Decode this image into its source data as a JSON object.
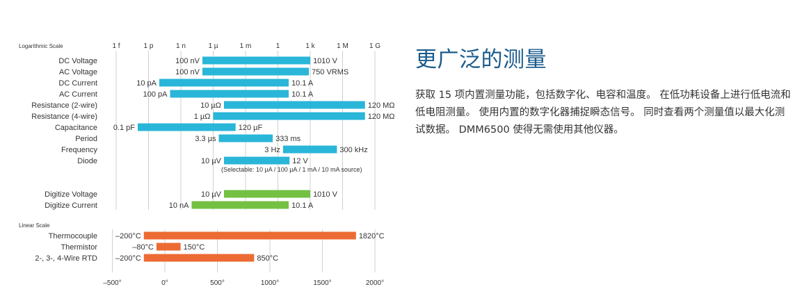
{
  "heading": "更广泛的测量",
  "description": "获取 15 项内置测量功能，包括数字化、电容和温度。 在低功耗设备上进行低电流和低电阻测量。 使用内置的数字化器捕捉瞬态信号。 同时查看两个测量值以最大化测试数据。 DMM6500 使得无需使用其他仪器。",
  "chart_data": {
    "type": "bar",
    "subtype": "floating-range",
    "colors": {
      "blue": "#29b6d8",
      "green": "#73c043",
      "orange": "#ec6b34",
      "grid": "#d0d0d0",
      "text": "#333333"
    },
    "log_scale": {
      "label": "Logarithmic Scale",
      "ticks": [
        {
          "label": "1 f",
          "exp": -15
        },
        {
          "label": "1 p",
          "exp": -12
        },
        {
          "label": "1 n",
          "exp": -9
        },
        {
          "label": "1 µ",
          "exp": -6
        },
        {
          "label": "1 m",
          "exp": -3
        },
        {
          "label": "1",
          "exp": 0
        },
        {
          "label": "1 k",
          "exp": 3
        },
        {
          "label": "1 M",
          "exp": 6
        },
        {
          "label": "1 G",
          "exp": 9
        }
      ],
      "series": [
        {
          "name": "DC Voltage",
          "low": 1e-07,
          "high": 1010,
          "low_label": "100 nV",
          "high_label": "1010 V",
          "color": "blue"
        },
        {
          "name": "AC Voltage",
          "low": 1e-07,
          "high": 750,
          "low_label": "100 nV",
          "high_label": "750 VRMS",
          "color": "blue"
        },
        {
          "name": "DC Current",
          "low": 1e-11,
          "high": 10.1,
          "low_label": "10 pA",
          "high_label": "10.1 A",
          "color": "blue"
        },
        {
          "name": "AC Current",
          "low": 1e-10,
          "high": 10.1,
          "low_label": "100 pA",
          "high_label": "10.1 A",
          "color": "blue"
        },
        {
          "name": "Resistance (2-wire)",
          "low": 1e-05,
          "high": 120000000.0,
          "low_label": "10 µΩ",
          "high_label": "120 MΩ",
          "color": "blue"
        },
        {
          "name": "Resistance (4-wire)",
          "low": 1e-06,
          "high": 120000000.0,
          "low_label": "1 µΩ",
          "high_label": "120 MΩ",
          "color": "blue"
        },
        {
          "name": "Capacitance",
          "low": 1e-13,
          "high": 0.00012,
          "low_label": "0.1 pF",
          "high_label": "120 µF",
          "color": "blue"
        },
        {
          "name": "Period",
          "low": 3.3e-06,
          "high": 0.333,
          "low_label": "3.3 µs",
          "high_label": "333 ms",
          "color": "blue"
        },
        {
          "name": "Frequency",
          "low": 3,
          "high": 300000,
          "low_label": "3 Hz",
          "high_label": "300 kHz",
          "color": "blue"
        },
        {
          "name": "Diode",
          "low": 1e-05,
          "high": 12,
          "low_label": "10 µV",
          "high_label": "12 V",
          "color": "blue"
        },
        {
          "name": "Digitize Voltage",
          "low": 1e-05,
          "high": 1010,
          "low_label": "10 µV",
          "high_label": "1010 V",
          "color": "green"
        },
        {
          "name": "Digitize Current",
          "low": 1e-08,
          "high": 10.1,
          "low_label": "10 nA",
          "high_label": "10.1 A",
          "color": "green"
        }
      ],
      "annotation": "(Selectable: 10 µA / 100 µA / 1 mA / 10 mA source)"
    },
    "linear_scale": {
      "label": "Linear Scale",
      "ticks": [
        -500,
        0,
        500,
        1000,
        1500,
        2000
      ],
      "tick_labels": [
        "–500°",
        "0°",
        "500°",
        "1000°",
        "1500°",
        "2000°"
      ],
      "series": [
        {
          "name": "Thermocouple",
          "low": -200,
          "high": 1820,
          "low_label": "–200°C",
          "high_label": "1820°C",
          "color": "orange"
        },
        {
          "name": "Thermistor",
          "low": -80,
          "high": 150,
          "low_label": "–80°C",
          "high_label": "150°C",
          "color": "orange"
        },
        {
          "name": "2-, 3-, 4-Wire RTD",
          "low": -200,
          "high": 850,
          "low_label": "–200°C",
          "high_label": "850°C",
          "color": "orange"
        }
      ]
    }
  }
}
